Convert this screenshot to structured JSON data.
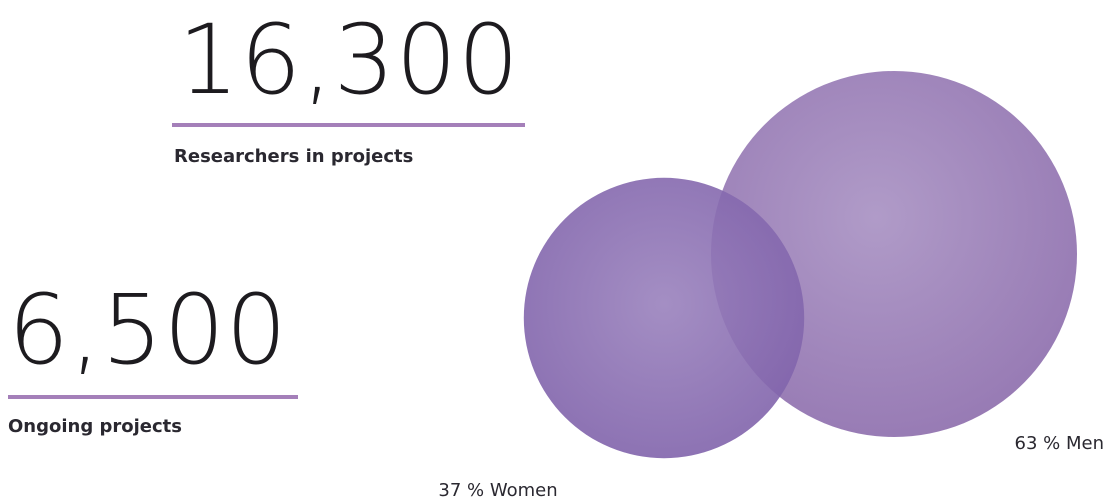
{
  "stats": [
    {
      "value": "16,300",
      "label": "Researchers in projects"
    },
    {
      "value": "6,500",
      "label": "Ongoing projects"
    }
  ],
  "colors": {
    "accent_rule": "#a47fb9",
    "men_bubble": "#a589bd",
    "women_bubble": "#8a6cb0",
    "text": "#1d1b1f"
  },
  "chart_data": {
    "type": "bubble",
    "title": "",
    "series": [
      {
        "name": "Men",
        "value": 63,
        "unit": "%",
        "label": "63 % Men"
      },
      {
        "name": "Women",
        "value": 37,
        "unit": "%",
        "label": "37 % Women"
      }
    ]
  }
}
